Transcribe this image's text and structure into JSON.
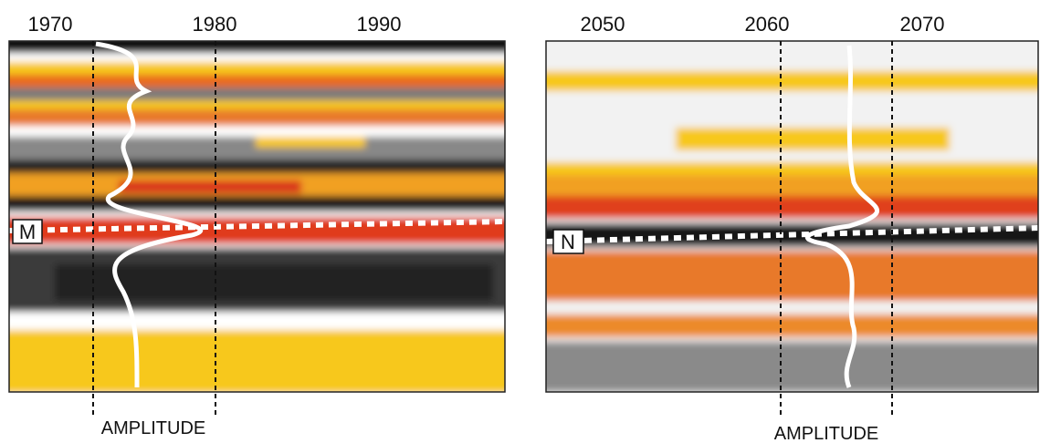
{
  "panels": [
    {
      "ticks": [
        "1970",
        "1980",
        "1990"
      ],
      "marker": "M",
      "axis_label": "AMPLITUDE"
    },
    {
      "ticks": [
        "2050",
        "2060",
        "2070"
      ],
      "marker": "N",
      "axis_label": "AMPLITUDE"
    }
  ]
}
